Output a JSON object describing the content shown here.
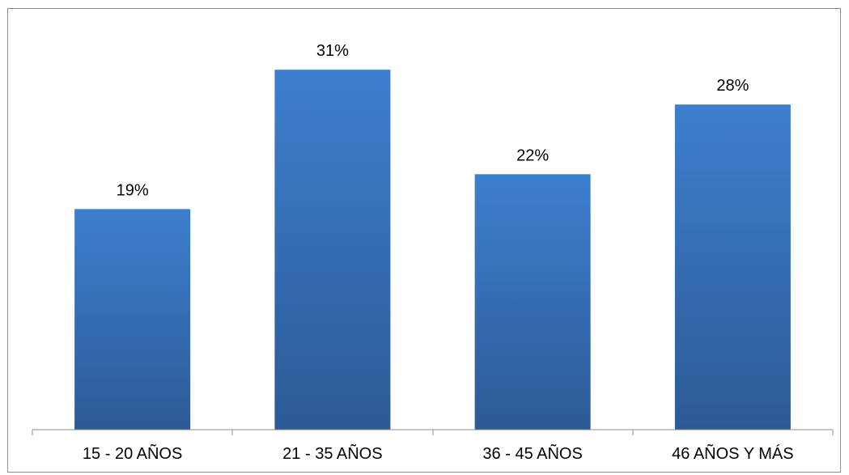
{
  "chart_data": {
    "type": "bar",
    "categories": [
      "15 - 20 AÑOS",
      "21 - 35 AÑOS",
      "36 - 45 AÑOS",
      "46 AÑOS Y MÁS"
    ],
    "values": [
      19,
      31,
      22,
      28
    ],
    "value_labels": [
      "19%",
      "31%",
      "22%",
      "28%"
    ],
    "unit": "%",
    "ylim": [
      0,
      35
    ],
    "grid": false,
    "legend": "none",
    "colors": {
      "bar_top": "#3d7fcf",
      "bar_bottom": "#2c5a95",
      "axis": "#8c8c8c",
      "frame": "#8c8c8c"
    }
  }
}
